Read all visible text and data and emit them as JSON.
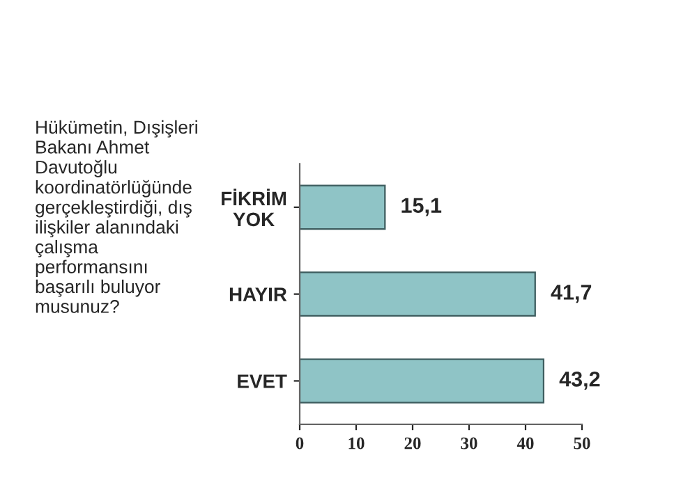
{
  "chart_data": {
    "type": "bar",
    "orientation": "horizontal",
    "title": "Hükümetin, Dışişleri Bakanı Ahmet Davutoğlu koordinatörlüğünde gerçekleştirdiği, dış ilişkiler alanındaki çalışma performansını başarılı buluyor musunuz?",
    "categories": [
      "FİKRİM YOK",
      "HAYIR",
      "EVET"
    ],
    "values": [
      15.1,
      41.7,
      43.2
    ],
    "value_labels": [
      "15,1",
      "41,7",
      "43,2"
    ],
    "color": "#8fc4c6",
    "xlim": [
      0,
      50
    ],
    "xticks": [
      0,
      10,
      20,
      30,
      40,
      50
    ],
    "grid": false,
    "legend": false
  }
}
